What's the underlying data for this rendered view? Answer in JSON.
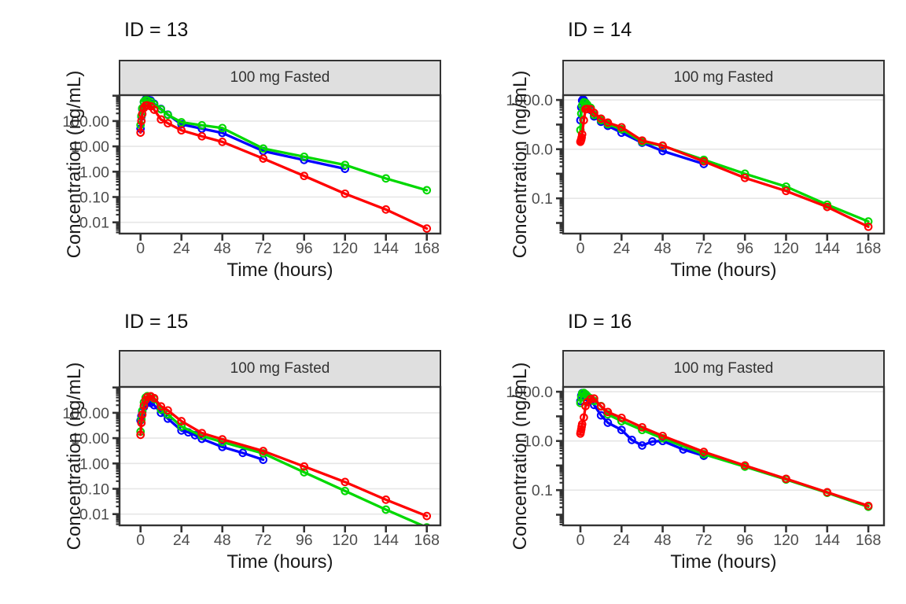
{
  "chart_data": {
    "type": "line",
    "y_scale": "log10",
    "x_scale": "linear",
    "grid": "horizontal-major-only",
    "legend": "none",
    "colors": {
      "blue": "#0000FF",
      "green": "#00D800",
      "red": "#FF0000"
    },
    "facets": [
      {
        "title": "ID = 13",
        "strip_label": "100 mg Fasted",
        "xlabel": "Time (hours)",
        "ylabel": "Concentration (ng/mL)",
        "xlim": [
          -11,
          175
        ],
        "ylim": [
          0.0036,
          1050
        ],
        "x_ticks": {
          "values": [
            0,
            24,
            48,
            72,
            96,
            120,
            144,
            168
          ],
          "labels": [
            "0",
            "24",
            "48",
            "72",
            "96",
            "120",
            "144",
            "168"
          ]
        },
        "y_ticks": [
          {
            "value": 100,
            "label": "100.00"
          },
          {
            "value": 10,
            "label": "10.00"
          },
          {
            "value": 1,
            "label": "1.00"
          },
          {
            "value": 0.1,
            "label": "0.10"
          },
          {
            "value": 0.01,
            "label": "0.01"
          }
        ],
        "series": [
          {
            "name": "blue",
            "color": "#0000FF",
            "x": [
              0,
              0.5,
              1,
              2,
              3,
              4,
              6,
              8,
              12,
              16,
              24,
              36,
              48,
              72,
              96,
              120
            ],
            "y": [
              50,
              150,
              300,
              560,
              710,
              730,
              640,
              480,
              300,
              180,
              74,
              50,
              34,
              6.5,
              2.9,
              1.3
            ]
          },
          {
            "name": "green",
            "color": "#00D800",
            "x": [
              0,
              0.5,
              1,
              2,
              3,
              4,
              6,
              8,
              12,
              16,
              24,
              36,
              48,
              72,
              96,
              120,
              144,
              168
            ],
            "y": [
              70,
              160,
              320,
              580,
              660,
              650,
              580,
              450,
              290,
              175,
              89,
              68,
              53,
              8.2,
              3.9,
              1.85,
              0.54,
              0.185
            ]
          },
          {
            "name": "red",
            "color": "#FF0000",
            "x": [
              0,
              0.5,
              1,
              2,
              3,
              4,
              6,
              8,
              12,
              16,
              24,
              36,
              48,
              72,
              96,
              120,
              144,
              168
            ],
            "y": [
              35,
              100,
              190,
              330,
              410,
              415,
              380,
              280,
              115,
              82,
              43,
              25,
              15,
              3.3,
              0.68,
              0.135,
              0.032,
              0.0057
            ]
          }
        ]
      },
      {
        "title": "ID = 14",
        "strip_label": "100 mg Fasted",
        "xlabel": "Time (hours)",
        "ylabel": "Concentration (ng/mL)",
        "xlim": [
          -11,
          175
        ],
        "ylim": [
          0.0037,
          1570
        ],
        "x_ticks": {
          "values": [
            0,
            24,
            48,
            72,
            96,
            120,
            144,
            168
          ],
          "labels": [
            "0",
            "24",
            "48",
            "72",
            "96",
            "120",
            "144",
            "168"
          ]
        },
        "y_ticks": [
          {
            "value": 1000,
            "label": "1000.0"
          },
          {
            "value": 10,
            "label": "10.0"
          },
          {
            "value": 0.1,
            "label": "0.1"
          }
        ],
        "series": [
          {
            "name": "blue",
            "color": "#0000FF",
            "x": [
              0,
              0.5,
              1,
              1.5,
              2,
              3,
              4,
              6,
              8,
              12,
              16,
              24,
              36,
              48,
              72
            ],
            "y": [
              150,
              500,
              950,
              1060,
              980,
              780,
              600,
              390,
              215,
              130,
              89,
              47,
              18.3,
              8.4,
              2.5
            ]
          },
          {
            "name": "green",
            "color": "#00D800",
            "x": [
              0,
              0.5,
              1,
              2,
              3,
              4,
              6,
              8,
              12,
              16,
              24,
              36,
              48,
              72,
              96,
              120,
              144,
              168
            ],
            "y": [
              60,
              280,
              600,
              810,
              760,
              650,
              480,
              245,
              150,
              104,
              65,
              20,
              13.5,
              3.7,
              1.0,
              0.3,
              0.055,
              0.0115
            ]
          },
          {
            "name": "red",
            "color": "#FF0000",
            "x": [
              0,
              0.25,
              0.5,
              0.75,
              1,
              2,
              3,
              4,
              6,
              8,
              12,
              16,
              24,
              36,
              48,
              72,
              96,
              120,
              144,
              168
            ],
            "y": [
              20,
              22,
              25,
              30,
              40,
              150,
              420,
              430,
              420,
              300,
              175,
              120,
              78,
              22.5,
              14,
              3.2,
              0.68,
              0.2,
              0.045,
              0.007
            ]
          }
        ]
      },
      {
        "title": "ID = 15",
        "strip_label": "100 mg Fasted",
        "xlabel": "Time (hours)",
        "ylabel": "Concentration (ng/mL)",
        "xlim": [
          -11,
          175
        ],
        "ylim": [
          0.0036,
          1050
        ],
        "x_ticks": {
          "values": [
            0,
            24,
            48,
            72,
            96,
            120,
            144,
            168
          ],
          "labels": [
            "0",
            "24",
            "48",
            "72",
            "96",
            "120",
            "144",
            "168"
          ]
        },
        "y_ticks": [
          {
            "value": 100,
            "label": "100.00"
          },
          {
            "value": 10,
            "label": "10.00"
          },
          {
            "value": 1,
            "label": "1.00"
          },
          {
            "value": 0.1,
            "label": "0.10"
          },
          {
            "value": 0.01,
            "label": "0.01"
          }
        ],
        "series": [
          {
            "name": "blue",
            "color": "#0000FF",
            "x": [
              0,
              0.5,
              1,
              2,
              3,
              4,
              6,
              8,
              12,
              16,
              24,
              28,
              32,
              36,
              48,
              60,
              72
            ],
            "y": [
              50,
              75,
              110,
              170,
              230,
              260,
              245,
              200,
              100,
              59,
              20,
              17,
              13,
              9.4,
              4.5,
              2.6,
              1.4
            ]
          },
          {
            "name": "green",
            "color": "#00D800",
            "x": [
              0,
              0.5,
              1,
              2,
              3,
              4,
              6,
              8,
              12,
              16,
              24,
              36,
              48,
              72,
              96,
              120,
              144,
              168
            ],
            "y": [
              18,
              55,
              120,
              260,
              400,
              455,
              430,
              350,
              134,
              86,
              28.5,
              12.2,
              7,
              2.5,
              0.45,
              0.082,
              0.015,
              0.003
            ]
          },
          {
            "name": "red",
            "color": "#FF0000",
            "x": [
              0,
              0.5,
              1,
              2,
              3,
              4,
              6,
              8,
              12,
              16,
              24,
              36,
              48,
              72,
              96,
              120,
              144,
              168
            ],
            "y": [
              13.5,
              40,
              85,
              190,
              320,
              420,
              450,
              380,
              180,
              125,
              46.7,
              15.8,
              9,
              3.1,
              0.76,
              0.185,
              0.037,
              0.0084
            ]
          }
        ]
      },
      {
        "title": "ID = 16",
        "strip_label": "100 mg Fasted",
        "xlabel": "Time (hours)",
        "ylabel": "Concentration (ng/mL)",
        "xlim": [
          -11,
          175
        ],
        "ylim": [
          0.0037,
          1570
        ],
        "x_ticks": {
          "values": [
            0,
            24,
            48,
            72,
            96,
            120,
            144,
            168
          ],
          "labels": [
            "0",
            "24",
            "48",
            "72",
            "96",
            "120",
            "144",
            "168"
          ]
        },
        "y_ticks": [
          {
            "value": 1000,
            "label": "1000.0"
          },
          {
            "value": 10,
            "label": "10.0"
          },
          {
            "value": 0.1,
            "label": "0.1"
          }
        ],
        "series": [
          {
            "name": "blue",
            "color": "#0000FF",
            "x": [
              0,
              0.5,
              1,
              2,
              3,
              4,
              6,
              8,
              12,
              16,
              24,
              30,
              36,
              42,
              48,
              60,
              72
            ],
            "y": [
              420,
              700,
              880,
              820,
              700,
              590,
              440,
              290,
              110,
              55,
              28,
              11,
              6.5,
              9.5,
              10,
              4.5,
              2.5
            ]
          },
          {
            "name": "green",
            "color": "#00D800",
            "x": [
              0,
              0.5,
              1,
              2,
              3,
              4,
              6,
              8,
              12,
              16,
              24,
              36,
              48,
              72,
              96,
              120,
              144,
              168
            ],
            "y": [
              350,
              600,
              850,
              900,
              800,
              680,
              540,
              420,
              260,
              120,
              64,
              28,
              12.8,
              2.9,
              0.9,
              0.27,
              0.078,
              0.021
            ]
          },
          {
            "name": "red",
            "color": "#FF0000",
            "x": [
              0,
              0.25,
              0.5,
              0.75,
              1,
              2,
              3,
              4,
              6,
              8,
              12,
              16,
              24,
              36,
              48,
              72,
              96,
              120,
              144,
              168
            ],
            "y": [
              20,
              24,
              30,
              38,
              48,
              90,
              260,
              380,
              510,
              530,
              255,
              150,
              87,
              36,
              16,
              3.6,
              1.0,
              0.29,
              0.082,
              0.023
            ]
          }
        ]
      }
    ]
  }
}
